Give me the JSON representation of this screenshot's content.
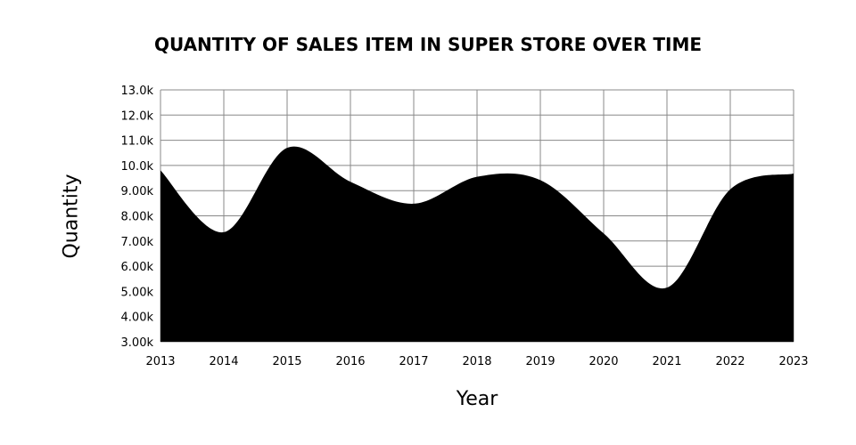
{
  "chart_data": {
    "type": "area",
    "title": "QUANTITY OF SALES ITEM IN SUPER STORE OVER TIME",
    "xlabel": "Year",
    "ylabel": "Quantity",
    "x": [
      "2013",
      "2014",
      "2015",
      "2016",
      "2017",
      "2018",
      "2019",
      "2020",
      "2021",
      "2022",
      "2023"
    ],
    "series": [
      {
        "name": "Quantity",
        "values": [
          9800,
          7350,
          10700,
          9350,
          8480,
          9550,
          9420,
          7300,
          5150,
          9050,
          9680
        ],
        "color": "#000000"
      }
    ],
    "ylim": [
      3000,
      13000
    ],
    "yticks": [
      "3.00k",
      "4.00k",
      "5.00k",
      "6.00k",
      "7.00k",
      "8.00k",
      "9.00k",
      "10.0k",
      "11.0k",
      "12.0k",
      "13.0k"
    ],
    "grid": true,
    "legend": "none"
  }
}
